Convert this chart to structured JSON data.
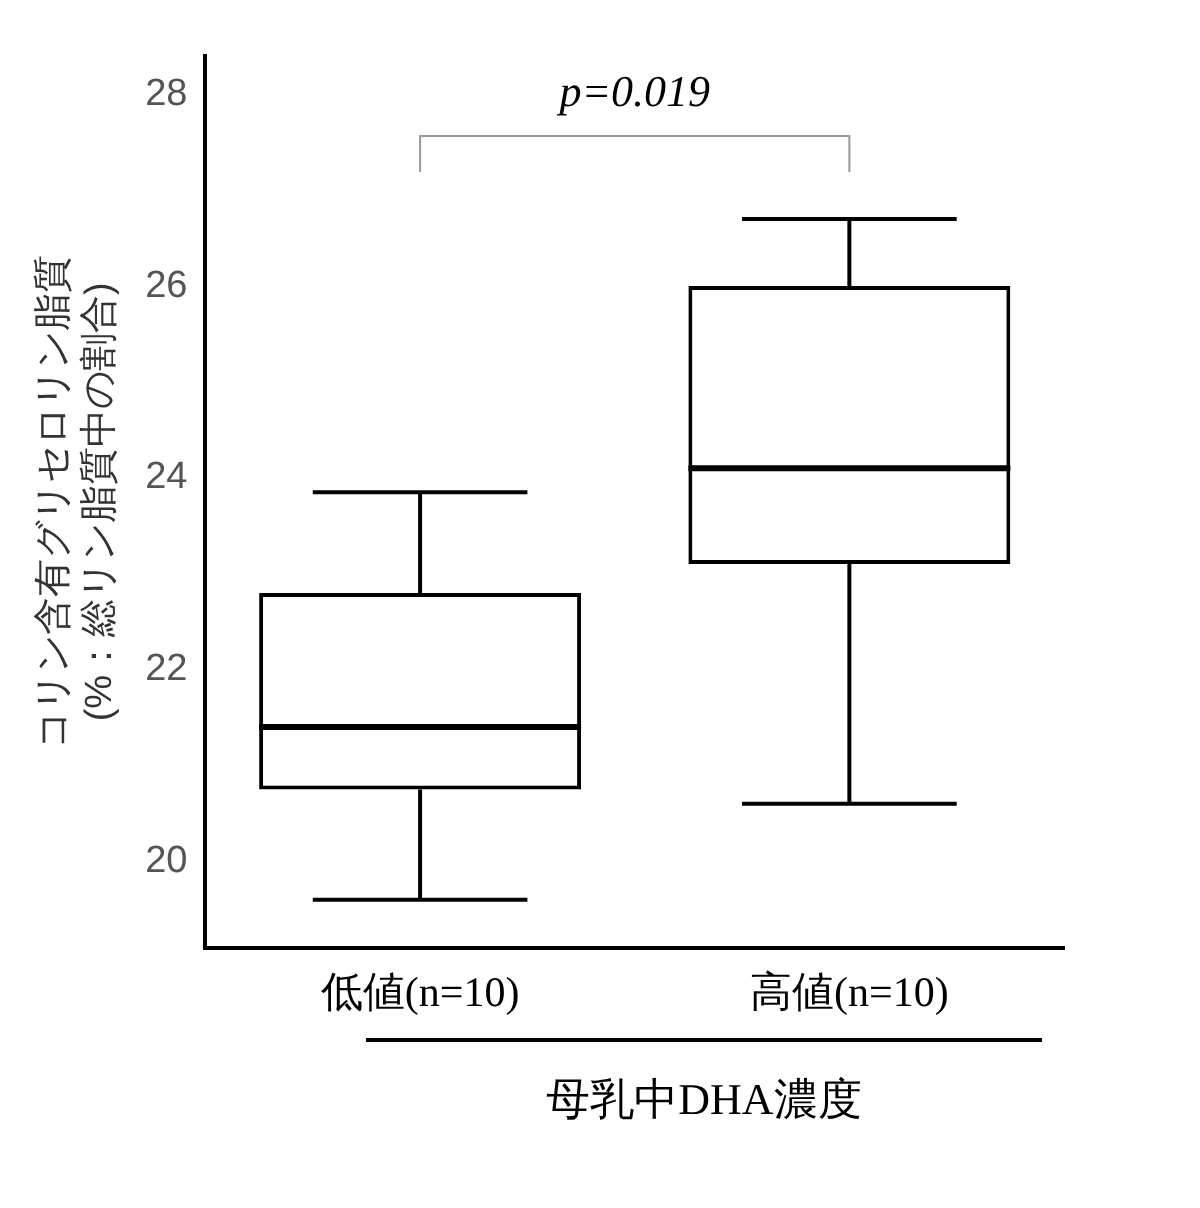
{
  "chart_data": {
    "type": "box",
    "ylabel": "コリン含有グリセロリン脂質\n(%：総リン脂質中の割合)",
    "xlabel": "母乳中DHA濃度",
    "categories": [
      "低値(n=10)",
      "高値(n=10)"
    ],
    "boxes": [
      {
        "low": 19.6,
        "q1": 20.75,
        "median": 21.4,
        "q3": 22.8,
        "high": 23.85
      },
      {
        "low": 20.6,
        "q1": 23.1,
        "median": 24.1,
        "q3": 26.0,
        "high": 26.7
      }
    ],
    "color": "#000000",
    "ylim": [
      19.1,
      28.4
    ],
    "yticks": [
      20,
      22,
      24,
      26,
      28
    ],
    "grid": false,
    "legend": false,
    "annotations": [
      "p=0.019"
    ]
  }
}
